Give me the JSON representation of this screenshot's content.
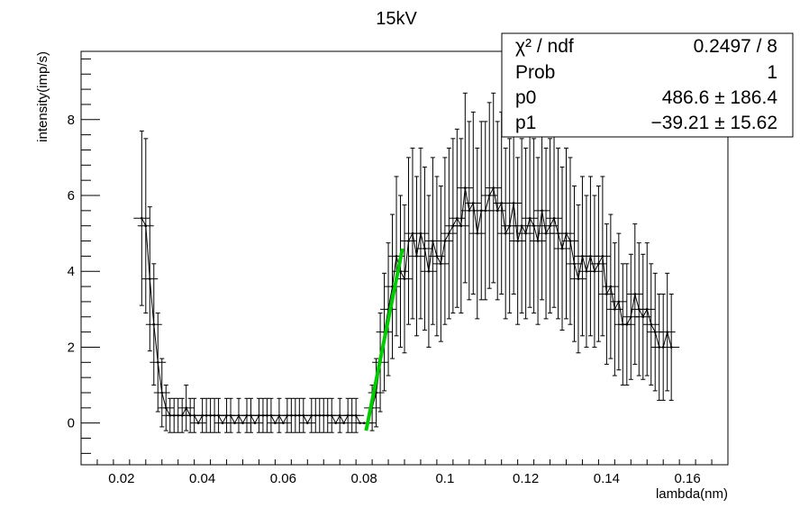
{
  "chart_data": {
    "type": "scatter",
    "title": "15kV",
    "xlabel": "lambda(nm)",
    "ylabel": "intensity(imp/s)",
    "xlim": [
      0.01,
      0.17
    ],
    "ylim": [
      -1.1,
      9.8
    ],
    "x_ticks": [
      0.02,
      0.04,
      0.06,
      0.08,
      0.1,
      0.12,
      0.14,
      0.16
    ],
    "x_tick_labels": [
      "0.02",
      "0.04",
      "0.06",
      "0.08",
      "0.1",
      "0.12",
      "0.14",
      "0.16"
    ],
    "y_ticks": [
      0,
      2,
      4,
      6,
      8
    ],
    "y_tick_labels": [
      "0",
      "2",
      "4",
      "6",
      "8"
    ],
    "x_bin_halfwidth": 0.002,
    "series": [
      {
        "style": "points-with-error-bars",
        "color": "#000000",
        "x": [
          0.025,
          0.026,
          0.027,
          0.028,
          0.029,
          0.03,
          0.031,
          0.032,
          0.033,
          0.034,
          0.035,
          0.036,
          0.037,
          0.038,
          0.039,
          0.04,
          0.041,
          0.042,
          0.043,
          0.044,
          0.045,
          0.046,
          0.047,
          0.048,
          0.049,
          0.05,
          0.051,
          0.052,
          0.053,
          0.054,
          0.055,
          0.056,
          0.057,
          0.058,
          0.059,
          0.06,
          0.061,
          0.062,
          0.063,
          0.064,
          0.065,
          0.066,
          0.067,
          0.068,
          0.069,
          0.07,
          0.071,
          0.072,
          0.073,
          0.074,
          0.075,
          0.076,
          0.077,
          0.078,
          0.079,
          0.08,
          0.081,
          0.082,
          0.083,
          0.084,
          0.085,
          0.086,
          0.087,
          0.088,
          0.089,
          0.09,
          0.091,
          0.092,
          0.093,
          0.094,
          0.095,
          0.096,
          0.097,
          0.098,
          0.099,
          0.1,
          0.101,
          0.102,
          0.103,
          0.104,
          0.105,
          0.106,
          0.107,
          0.108,
          0.109,
          0.11,
          0.111,
          0.112,
          0.113,
          0.114,
          0.115,
          0.116,
          0.117,
          0.118,
          0.119,
          0.12,
          0.121,
          0.122,
          0.123,
          0.124,
          0.125,
          0.126,
          0.127,
          0.128,
          0.129,
          0.13,
          0.131,
          0.132,
          0.133,
          0.134,
          0.135,
          0.136,
          0.137,
          0.138,
          0.139,
          0.14,
          0.141,
          0.142,
          0.143,
          0.144,
          0.145,
          0.146,
          0.147,
          0.148,
          0.149,
          0.15,
          0.151,
          0.152,
          0.153,
          0.154,
          0.155,
          0.156
        ],
        "y": [
          5.4,
          5.2,
          3.8,
          2.6,
          1.6,
          0.8,
          0.4,
          0.2,
          0.2,
          0.2,
          0.2,
          0.4,
          0.2,
          0.2,
          0.0,
          0.2,
          0.2,
          0.2,
          0.2,
          0.2,
          0.0,
          0.2,
          0.2,
          0.0,
          0.2,
          0.0,
          0.2,
          0.2,
          0.0,
          0.2,
          0.2,
          0.2,
          0.2,
          0.0,
          0.2,
          0.0,
          0.2,
          0.2,
          0.2,
          0.2,
          0.2,
          0.0,
          0.2,
          0.2,
          0.2,
          0.2,
          0.2,
          0.2,
          0.0,
          0.2,
          0.0,
          0.2,
          0.2,
          0.2,
          0.0,
          0.0,
          0.0,
          0.4,
          0.8,
          1.6,
          2.4,
          3.0,
          3.6,
          4.4,
          4.0,
          3.8,
          4.8,
          5.0,
          4.4,
          5.0,
          4.6,
          4.0,
          4.8,
          4.4,
          4.2,
          4.8,
          5.0,
          5.2,
          5.4,
          5.2,
          6.2,
          5.6,
          5.8,
          5.0,
          5.6,
          5.6,
          6.0,
          6.2,
          5.6,
          5.8,
          5.0,
          5.2,
          5.8,
          4.8,
          5.2,
          5.0,
          5.4,
          5.2,
          4.8,
          5.6,
          5.0,
          5.2,
          5.4,
          5.0,
          4.6,
          5.0,
          4.8,
          4.2,
          3.8,
          4.4,
          4.0,
          4.4,
          4.0,
          4.2,
          4.4,
          3.4,
          3.6,
          3.0,
          3.2,
          2.6,
          2.6,
          2.8,
          3.4,
          3.0,
          2.8,
          3.0,
          2.6,
          2.4,
          2.0,
          2.0,
          2.4,
          2.0
        ],
        "yerr": [
          2.3,
          2.3,
          1.9,
          1.6,
          1.3,
          0.9,
          0.6,
          0.45,
          0.45,
          0.45,
          0.45,
          0.6,
          0.45,
          0.45,
          0.0,
          0.45,
          0.45,
          0.45,
          0.45,
          0.45,
          0.0,
          0.45,
          0.45,
          0.0,
          0.45,
          0.0,
          0.45,
          0.45,
          0.0,
          0.45,
          0.45,
          0.45,
          0.45,
          0.0,
          0.45,
          0.0,
          0.45,
          0.45,
          0.45,
          0.45,
          0.45,
          0.0,
          0.45,
          0.45,
          0.45,
          0.45,
          0.45,
          0.45,
          0.0,
          0.45,
          0.0,
          0.45,
          0.45,
          0.45,
          0.0,
          0.0,
          0.0,
          0.6,
          0.9,
          1.3,
          1.55,
          1.75,
          1.9,
          2.1,
          2.0,
          1.95,
          2.2,
          2.25,
          2.1,
          2.25,
          2.15,
          2.0,
          2.2,
          2.1,
          2.05,
          2.2,
          2.25,
          2.3,
          2.35,
          2.3,
          2.5,
          2.35,
          2.4,
          2.25,
          2.35,
          2.35,
          2.45,
          2.5,
          2.35,
          2.4,
          2.25,
          2.3,
          2.4,
          2.2,
          2.3,
          2.25,
          2.35,
          2.3,
          2.2,
          2.35,
          2.25,
          2.3,
          2.35,
          2.25,
          2.15,
          2.25,
          2.2,
          2.05,
          1.95,
          2.1,
          2.0,
          2.1,
          2.0,
          2.05,
          2.1,
          1.85,
          1.9,
          1.75,
          1.8,
          1.6,
          1.6,
          1.65,
          1.85,
          1.75,
          1.65,
          1.75,
          1.6,
          1.55,
          1.4,
          1.4,
          1.55,
          1.4
        ]
      },
      {
        "style": "fit-line",
        "color": "#00cc00",
        "x": [
          0.0805,
          0.0895
        ],
        "y": [
          -0.2,
          4.6
        ]
      }
    ],
    "fit_stats": {
      "chi2_label": "χ² / ndf",
      "chi2_value": "0.2497 / 8",
      "prob_label": "Prob",
      "prob_value": "1",
      "p0_label": "p0",
      "p0_value": "486.6 ± 186.4",
      "p1_label": "p1",
      "p1_value": "−39.21 ± 15.62"
    }
  }
}
